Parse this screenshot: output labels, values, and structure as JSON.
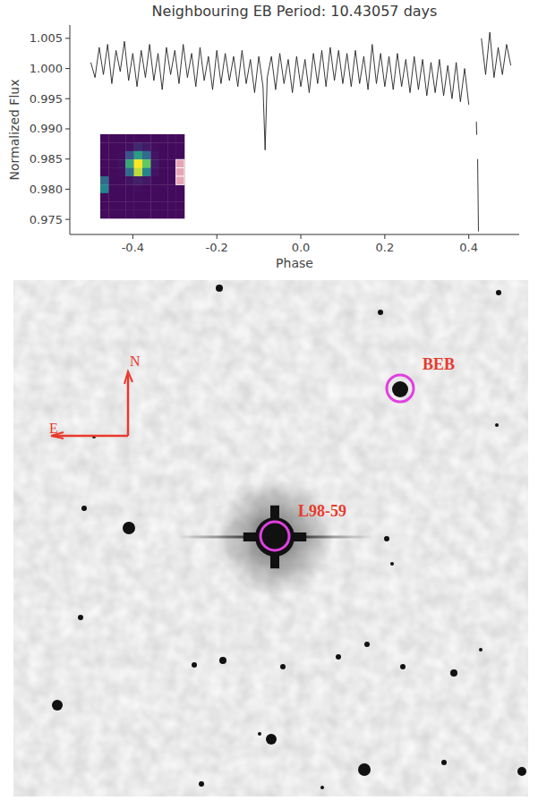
{
  "chart_data": {
    "type": "line",
    "title": "Neighbouring EB Period: 10.43057 days",
    "x_label": "Phase",
    "y_label": "Normalized Flux",
    "color": "#222222",
    "xlim": [
      -0.55,
      0.52
    ],
    "ylim": [
      0.9725,
      1.0072
    ],
    "xticks": [
      -0.4,
      -0.2,
      {
        "value": 0,
        "label": "0.0"
      },
      0.2,
      0.4
    ],
    "yticks": [
      0.975,
      {
        "value": 0.98,
        "label": "0.980"
      },
      0.985,
      {
        "value": 0.99,
        "label": "0.990"
      },
      0.995,
      {
        "value": 1,
        "label": "1.000"
      },
      1.005
    ],
    "x": [
      -0.5,
      -0.49,
      -0.48,
      -0.47,
      -0.46,
      -0.45,
      -0.44,
      -0.43,
      -0.42,
      -0.41,
      -0.4,
      -0.39,
      -0.38,
      -0.37,
      -0.36,
      -0.35,
      -0.34,
      -0.33,
      -0.32,
      -0.31,
      -0.3,
      -0.29,
      -0.28,
      -0.27,
      -0.26,
      -0.25,
      -0.24,
      -0.23,
      -0.22,
      -0.21,
      -0.2,
      -0.19,
      -0.18,
      -0.17,
      -0.16,
      -0.15,
      -0.14,
      -0.13,
      -0.12,
      -0.11,
      -0.1,
      -0.09,
      -0.085,
      -0.08,
      -0.07,
      -0.06,
      -0.05,
      -0.04,
      -0.03,
      -0.02,
      -0.01,
      0,
      0.01,
      0.02,
      0.03,
      0.04,
      0.05,
      0.06,
      0.07,
      0.08,
      0.09,
      0.1,
      0.11,
      0.12,
      0.13,
      0.14,
      0.15,
      0.16,
      0.17,
      0.18,
      0.19,
      0.2,
      0.21,
      0.22,
      0.23,
      0.24,
      0.25,
      0.26,
      0.27,
      0.28,
      0.29,
      0.3,
      0.31,
      0.32,
      0.33,
      0.34,
      0.35,
      0.36,
      0.37,
      0.38,
      0.39,
      0.4,
      0.41,
      0.418,
      0.419,
      0.4195,
      0.421,
      0.423,
      0.426,
      0.43,
      0.44,
      0.45,
      0.46,
      0.47,
      0.48,
      0.49,
      0.5
    ],
    "values": [
      1.001,
      0.9985,
      1.0035,
      0.999,
      1.004,
      0.9975,
      1.003,
      0.9995,
      1.0045,
      0.998,
      1.0025,
      0.997,
      1.003,
      0.9985,
      1.004,
      0.998,
      1.0025,
      0.9965,
      1.0035,
      0.999,
      1.003,
      0.9975,
      1.004,
      0.9985,
      1.0025,
      0.997,
      1.0035,
      0.998,
      1.002,
      0.9965,
      1.003,
      0.9975,
      1.0025,
      0.998,
      1.002,
      0.997,
      1.003,
      0.9975,
      1.0015,
      0.996,
      1.002,
      0.997,
      0.9865,
      0.9985,
      1.002,
      0.9965,
      1.0025,
      0.9975,
      1.0015,
      0.996,
      1.002,
      0.997,
      1.0015,
      0.996,
      1.0025,
      0.9975,
      1.003,
      0.997,
      1.0035,
      0.998,
      1.003,
      0.9975,
      1.0025,
      0.997,
      1.003,
      0.9975,
      1.002,
      0.9965,
      1.004,
      0.9975,
      1.0025,
      0.997,
      1.002,
      0.9965,
      1.0025,
      0.997,
      1.0015,
      0.996,
      1.002,
      0.9965,
      1.0015,
      0.9955,
      1.001,
      0.996,
      1.0015,
      0.9955,
      1.0005,
      0.995,
      1.001,
      0.9945,
      1.0,
      0.994,
      null,
      0.9912,
      0.989,
      null,
      0.985,
      0.973,
      null,
      1.005,
      0.999,
      1.006,
      0.9985,
      1.0035,
      0.999,
      1.004,
      1.0005
    ],
    "inset": {
      "cells": [
        [
          0.03,
          0.03,
          0.03,
          0.03,
          0.03,
          0.03,
          0.03,
          0.03,
          0.03,
          0.03
        ],
        [
          0.03,
          0.03,
          0.03,
          0.05,
          0.12,
          0.08,
          0.04,
          0.03,
          0.03,
          0.03
        ],
        [
          0.03,
          0.03,
          0.04,
          0.25,
          0.55,
          0.35,
          0.06,
          0.03,
          0.03,
          0.03
        ],
        [
          0.03,
          0.03,
          0.05,
          0.6,
          1.0,
          0.75,
          0.08,
          0.03,
          0.03,
          0.03
        ],
        [
          0.03,
          0.03,
          0.04,
          0.35,
          0.9,
          0.45,
          0.06,
          0.03,
          0.03,
          0.03
        ],
        [
          0.35,
          0.03,
          0.03,
          0.06,
          0.1,
          0.07,
          0.03,
          0.03,
          0.03,
          0.03
        ],
        [
          0.45,
          0.03,
          0.03,
          0.03,
          0.04,
          0.03,
          0.03,
          0.03,
          0.03,
          0.03
        ],
        [
          0.03,
          0.03,
          0.03,
          0.03,
          0.03,
          0.03,
          0.03,
          0.03,
          0.03,
          0.03
        ],
        [
          0.03,
          0.03,
          0.03,
          0.03,
          0.03,
          0.03,
          0.03,
          0.03,
          0.03,
          0.03
        ],
        [
          0.03,
          0.03,
          0.03,
          0.03,
          0.03,
          0.03,
          0.03,
          0.03,
          0.03,
          0.03
        ]
      ],
      "aperture": [
        [
          3,
          9
        ],
        [
          4,
          9
        ],
        [
          5,
          9
        ]
      ]
    }
  },
  "sky_image": {
    "stars": [
      {
        "x": 292,
        "y": 287,
        "size": 22
      },
      {
        "x": 432,
        "y": 122,
        "size": 9
      },
      {
        "x": 129,
        "y": 277,
        "size": 7
      },
      {
        "x": 230,
        "y": 9,
        "size": 4
      },
      {
        "x": 542,
        "y": 14,
        "size": 3
      },
      {
        "x": 410,
        "y": 36,
        "size": 3
      },
      {
        "x": 79,
        "y": 255,
        "size": 3
      },
      {
        "x": 417,
        "y": 289,
        "size": 3
      },
      {
        "x": 423,
        "y": 317,
        "size": 2
      },
      {
        "x": 75,
        "y": 377,
        "size": 3
      },
      {
        "x": 202,
        "y": 430,
        "size": 3
      },
      {
        "x": 234,
        "y": 425,
        "size": 4
      },
      {
        "x": 301,
        "y": 432,
        "size": 3
      },
      {
        "x": 363,
        "y": 421,
        "size": 3
      },
      {
        "x": 395,
        "y": 407,
        "size": 3
      },
      {
        "x": 435,
        "y": 432,
        "size": 3
      },
      {
        "x": 492,
        "y": 439,
        "size": 4
      },
      {
        "x": 522,
        "y": 413,
        "size": 2
      },
      {
        "x": 49,
        "y": 475,
        "size": 6
      },
      {
        "x": 288,
        "y": 513,
        "size": 6
      },
      {
        "x": 275,
        "y": 507,
        "size": 2
      },
      {
        "x": 392,
        "y": 547,
        "size": 7
      },
      {
        "x": 568,
        "y": 549,
        "size": 5
      },
      {
        "x": 481,
        "y": 539,
        "size": 3
      },
      {
        "x": 210,
        "y": 563,
        "size": 3
      },
      {
        "x": 90,
        "y": 175,
        "size": 2
      },
      {
        "x": 540,
        "y": 162,
        "size": 2
      },
      {
        "x": 345,
        "y": 567,
        "size": 2
      }
    ],
    "circled": [
      {
        "label": "L98-59",
        "x": 292,
        "y": 286,
        "radius": 16
      },
      {
        "label": "BEB",
        "x": 432,
        "y": 121,
        "radius": 15
      }
    ],
    "compass": {
      "north": "N",
      "east": "E"
    }
  }
}
